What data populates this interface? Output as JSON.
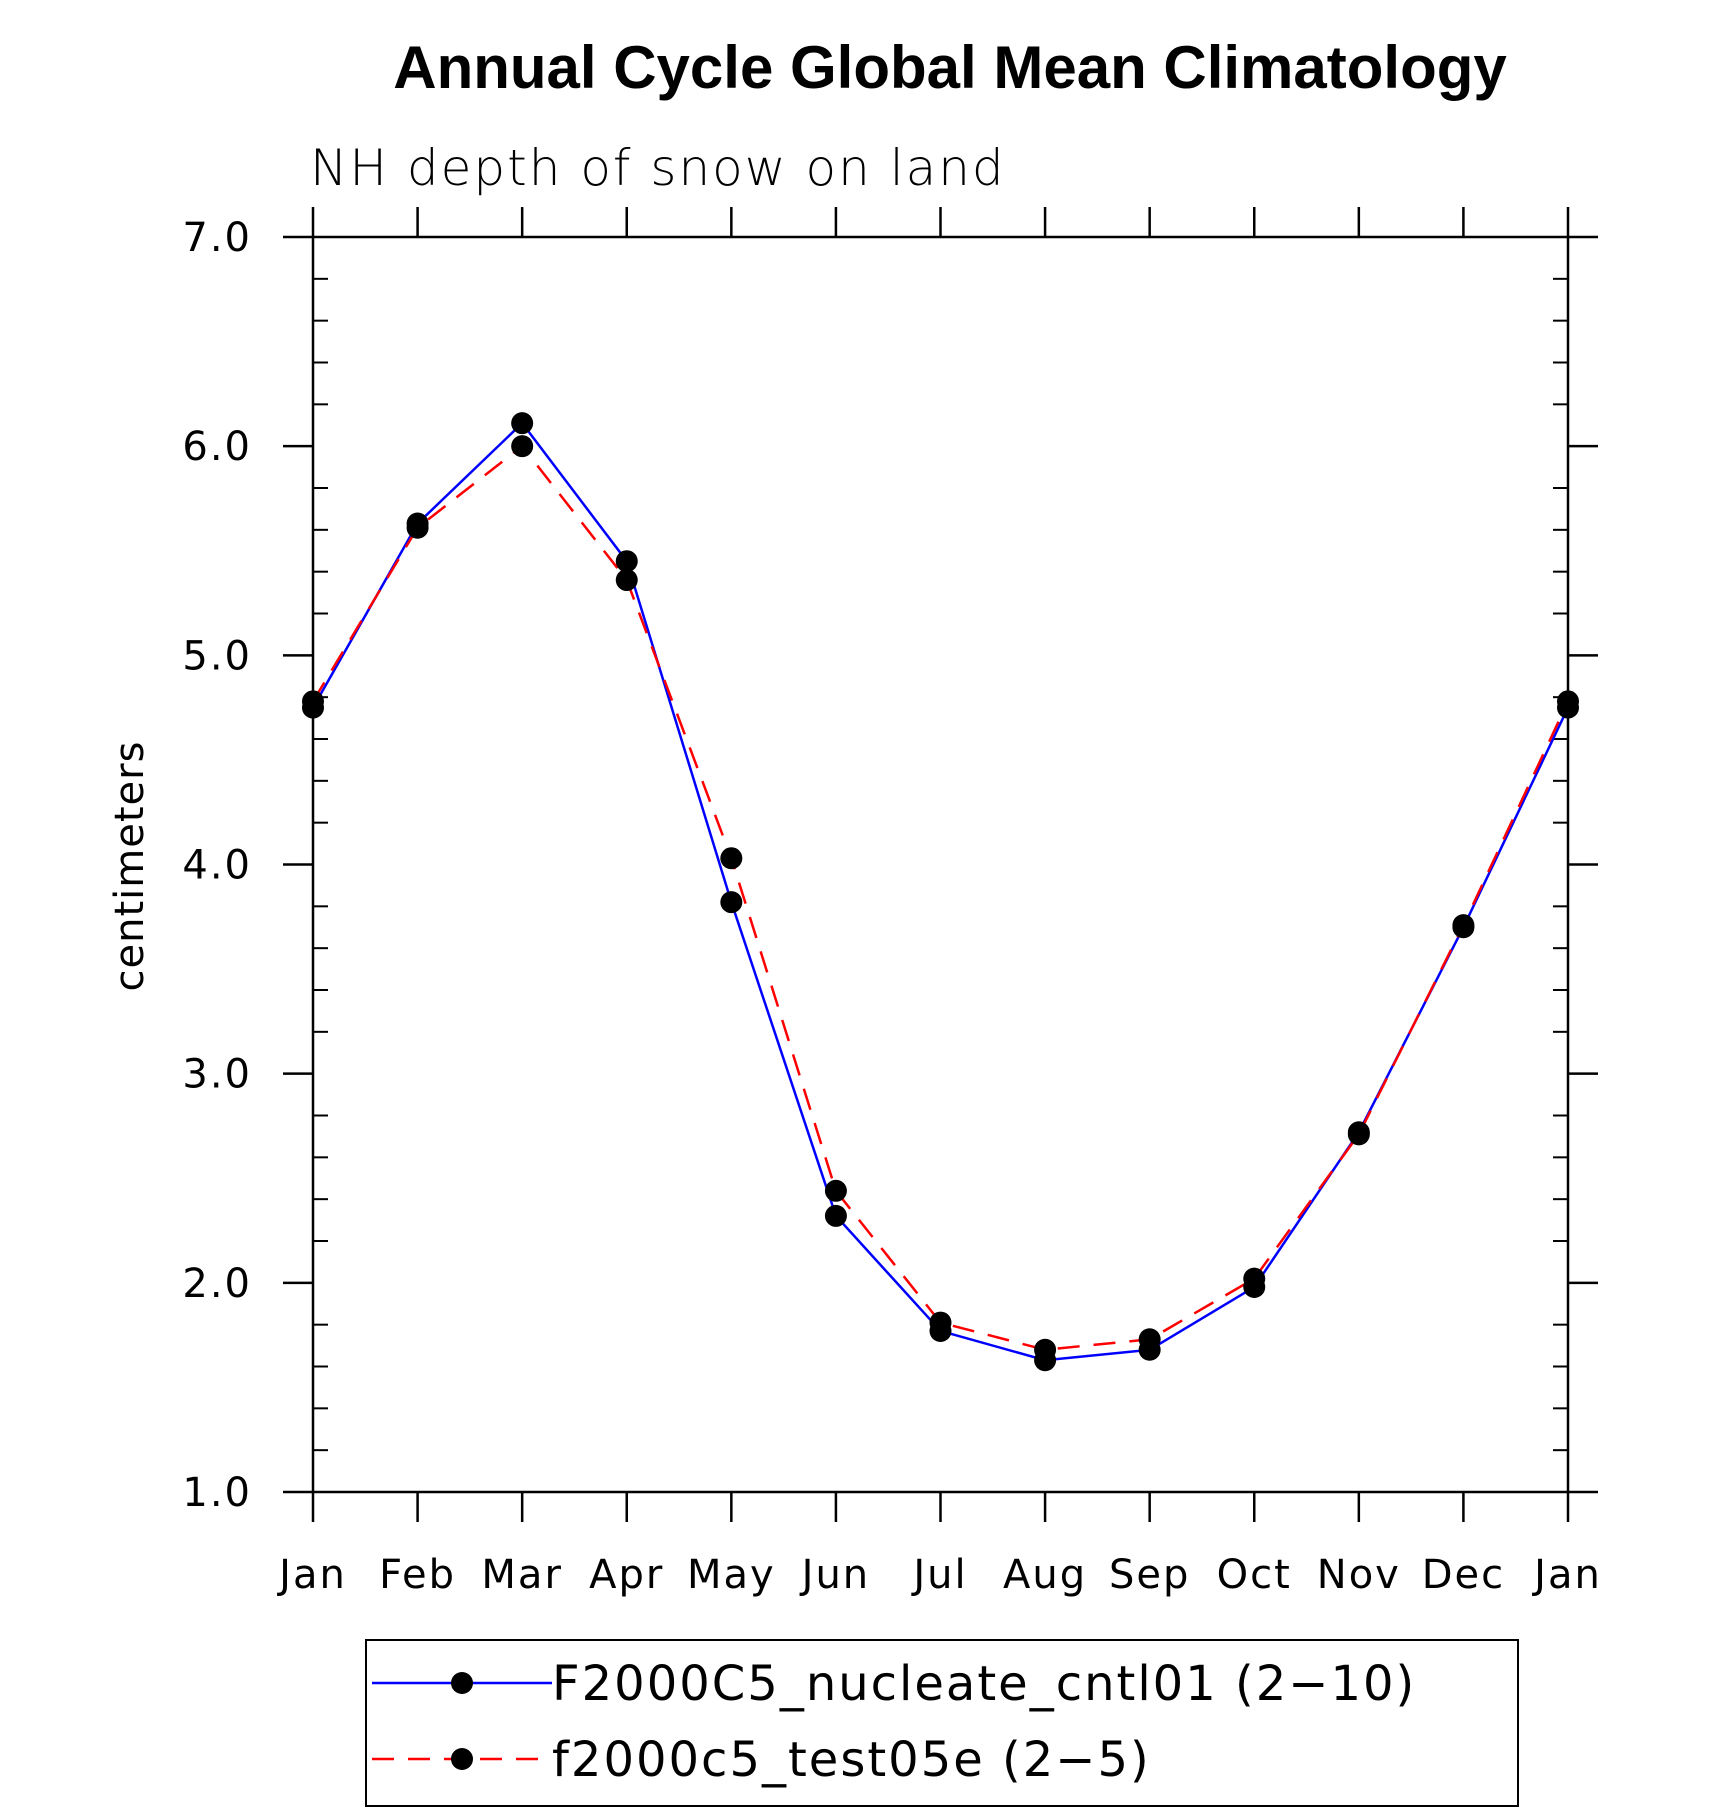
{
  "chart_data": {
    "type": "line",
    "title": "Annual Cycle Global Mean Climatology",
    "subtitle": "NH depth of snow on land",
    "xlabel": "",
    "ylabel": "centimeters",
    "categories": [
      "Jan",
      "Feb",
      "Mar",
      "Apr",
      "May",
      "Jun",
      "Jul",
      "Aug",
      "Sep",
      "Oct",
      "Nov",
      "Dec",
      "Jan"
    ],
    "ylim": [
      1.0,
      7.0
    ],
    "yticks": [
      "1.0",
      "2.0",
      "3.0",
      "4.0",
      "5.0",
      "6.0",
      "7.0"
    ],
    "grid": false,
    "legend_position": "bottom",
    "series": [
      {
        "name": "F2000C5_nucleate_cntl01 (2−10)",
        "color": "#0000ff",
        "line_style": "solid",
        "values": [
          4.75,
          5.63,
          6.11,
          5.45,
          3.82,
          2.32,
          1.77,
          1.63,
          1.68,
          1.98,
          2.72,
          3.7,
          4.75
        ]
      },
      {
        "name": "f2000c5_test05e (2−5)",
        "color": "#ff0000",
        "line_style": "dashed",
        "values": [
          4.78,
          5.61,
          6.0,
          5.36,
          4.03,
          2.44,
          1.81,
          1.68,
          1.73,
          2.02,
          2.71,
          3.71,
          4.78
        ]
      }
    ]
  }
}
